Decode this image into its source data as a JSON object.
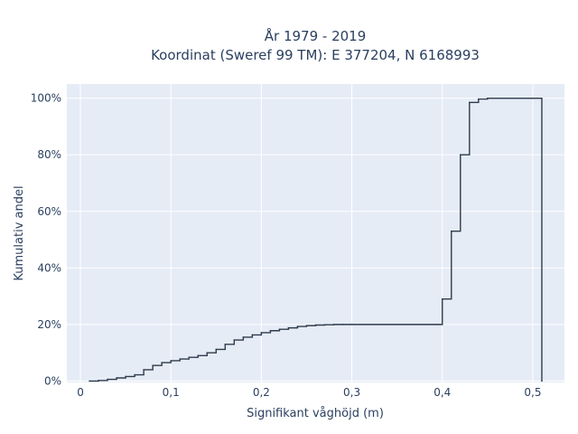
{
  "chart_data": {
    "type": "line",
    "line_shape": "step",
    "title_lines": [
      "År 1979 - 2019",
      "Koordinat (Sweref 99 TM): E 377204, N 6168993"
    ],
    "xlabel": "Signifikant våghöjd (m)",
    "ylabel": "Kumulativ andel",
    "xlim": [
      -0.015,
      0.535
    ],
    "ylim": [
      -0.005,
      1.05
    ],
    "x_ticks": [
      0,
      0.1,
      0.2,
      0.3,
      0.4,
      0.5
    ],
    "x_tick_labels": [
      "0",
      "0,1",
      "0,2",
      "0,3",
      "0,4",
      "0,5"
    ],
    "y_ticks": [
      0,
      0.2,
      0.4,
      0.6,
      0.8,
      1.0
    ],
    "y_tick_labels": [
      "0%",
      "20%",
      "40%",
      "60%",
      "80%",
      "100%"
    ],
    "grid": true,
    "colors": {
      "line": "#2f3b4c",
      "plot_bg": "#e5ecf6",
      "grid": "#ffffff"
    },
    "series": [
      {
        "x": [
          0.01,
          0.02,
          0.03,
          0.04,
          0.05,
          0.06,
          0.07,
          0.08,
          0.09,
          0.1,
          0.11,
          0.12,
          0.13,
          0.14,
          0.15,
          0.16,
          0.17,
          0.18,
          0.19,
          0.2,
          0.21,
          0.22,
          0.23,
          0.24,
          0.25,
          0.26,
          0.27,
          0.28,
          0.29,
          0.3,
          0.4,
          0.41,
          0.42,
          0.43,
          0.44,
          0.45,
          0.5,
          0.51
        ],
        "y": [
          0.0,
          0.002,
          0.006,
          0.011,
          0.016,
          0.022,
          0.04,
          0.055,
          0.065,
          0.072,
          0.078,
          0.084,
          0.09,
          0.1,
          0.112,
          0.13,
          0.145,
          0.155,
          0.163,
          0.171,
          0.178,
          0.183,
          0.188,
          0.193,
          0.196,
          0.198,
          0.199,
          0.2,
          0.2,
          0.2,
          0.29,
          0.53,
          0.8,
          0.985,
          0.997,
          1.0,
          1.0,
          0.0
        ]
      }
    ]
  }
}
